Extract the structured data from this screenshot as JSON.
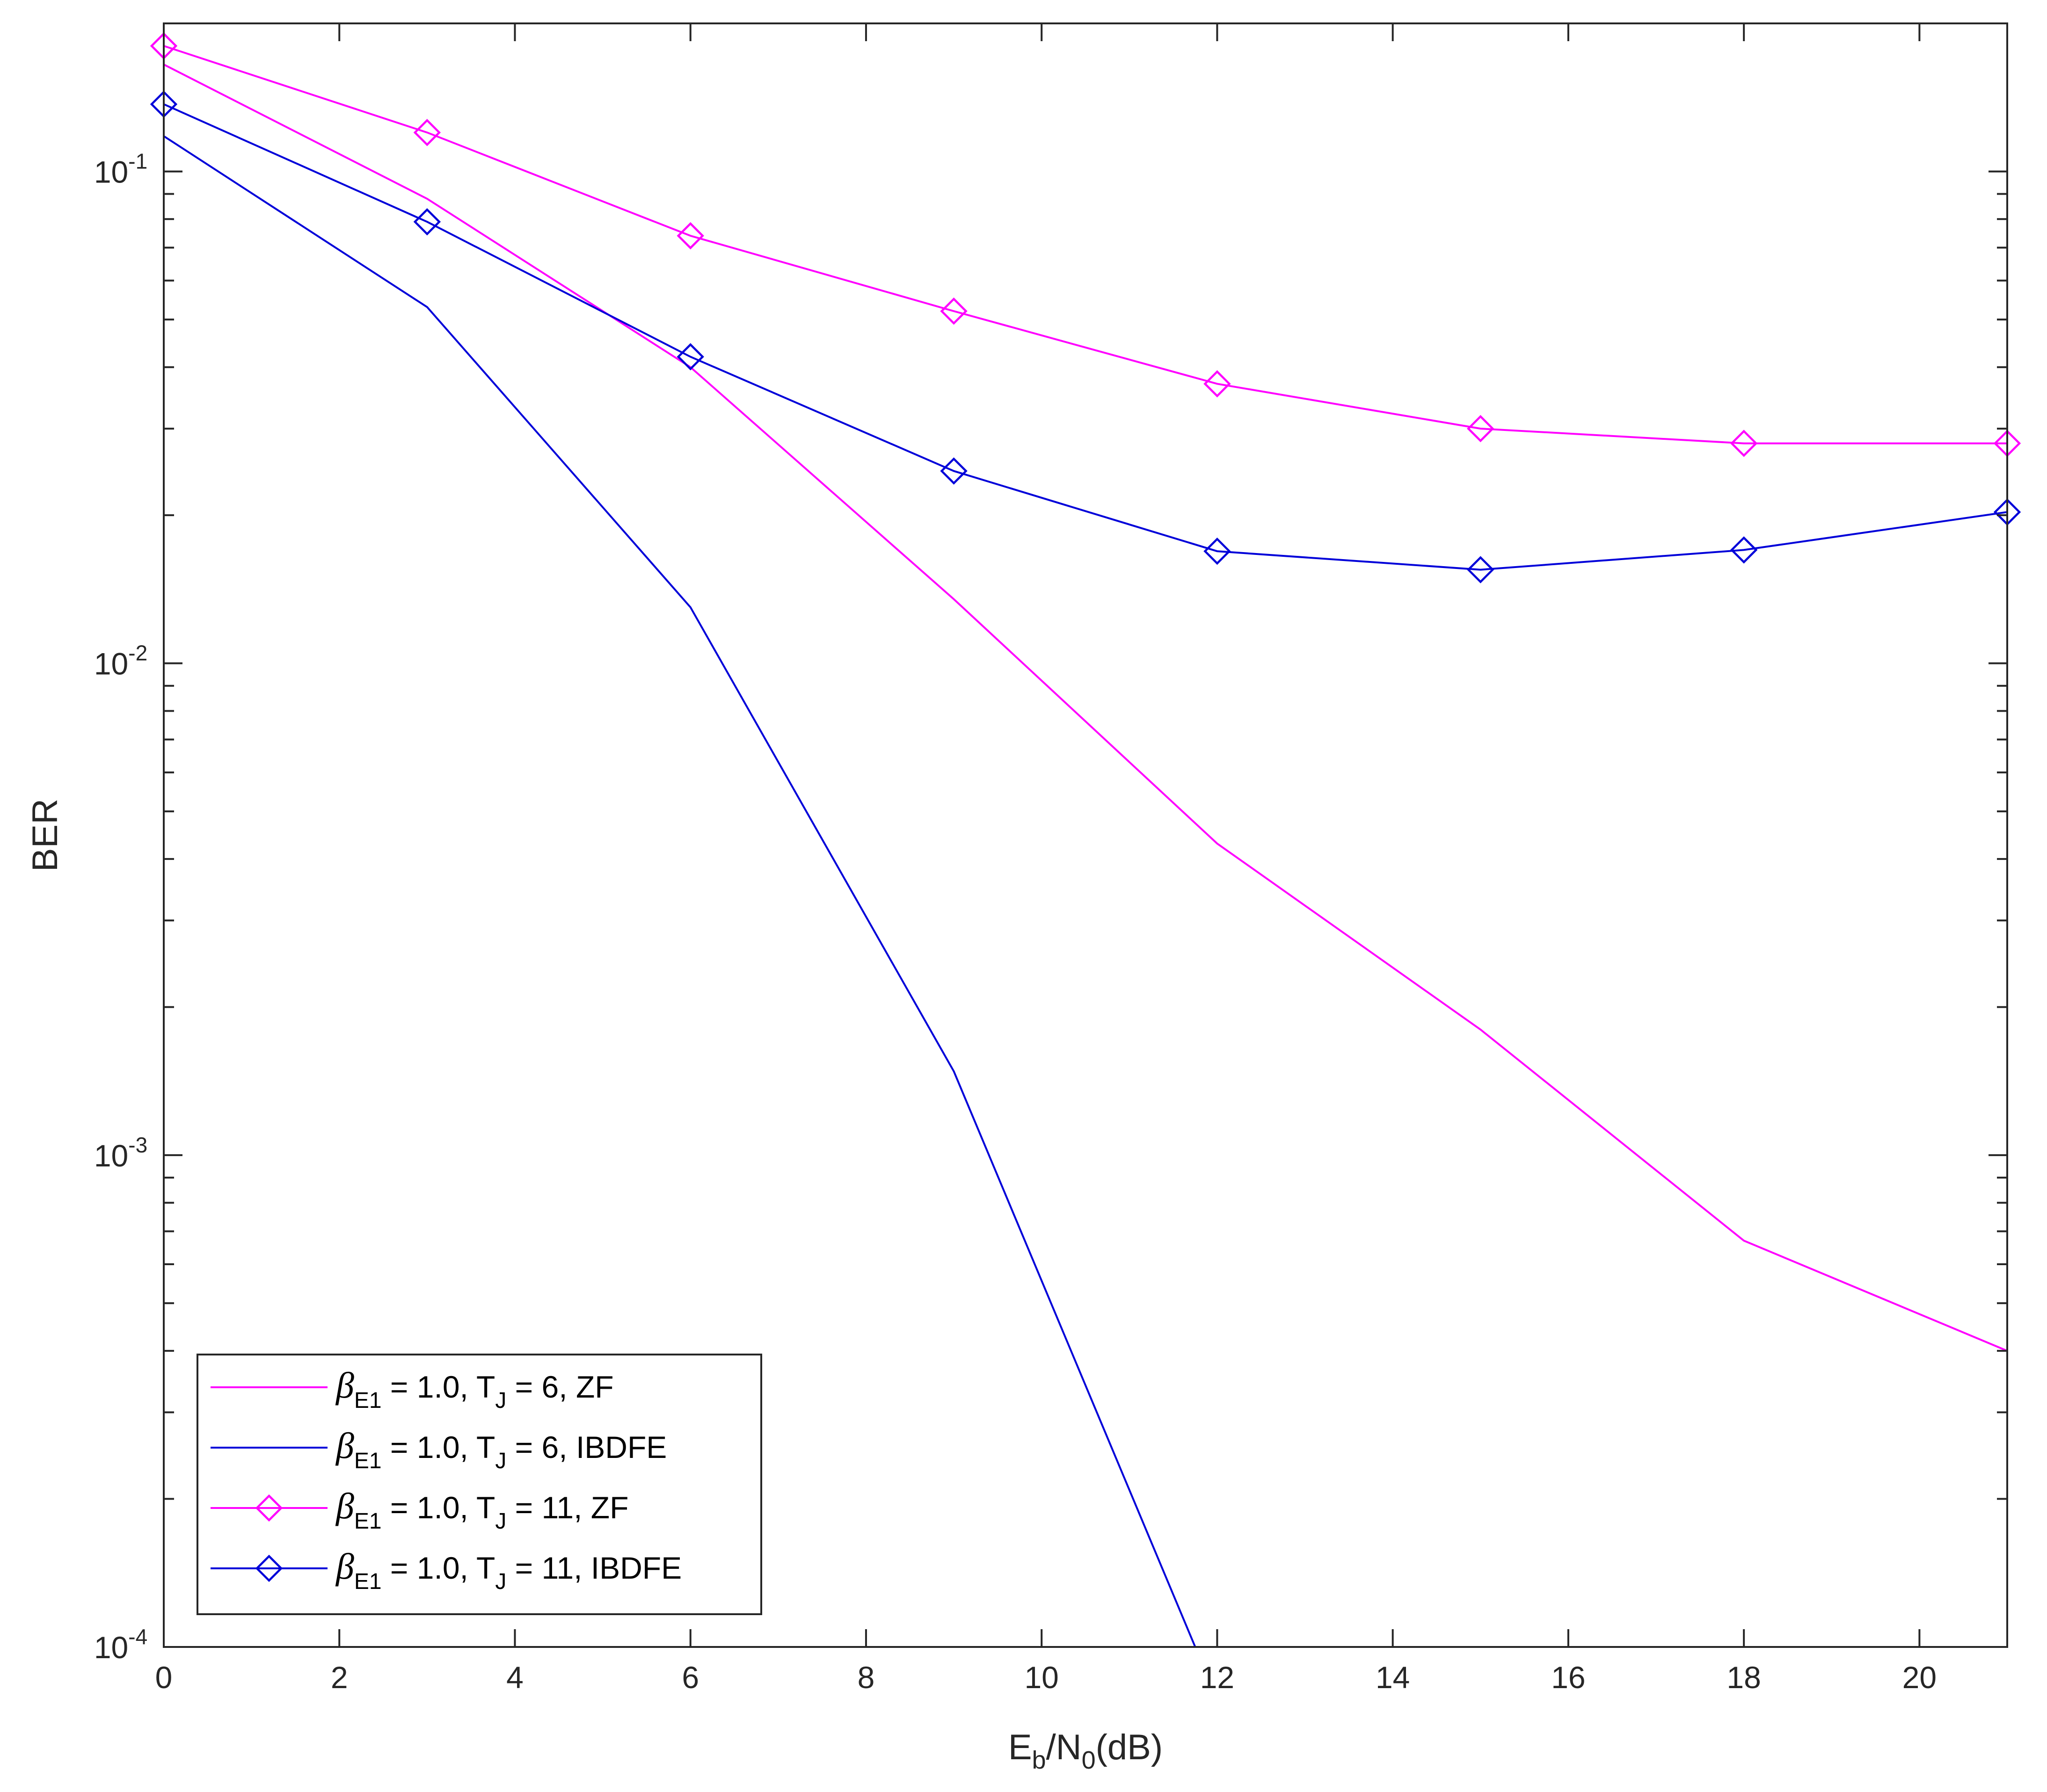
{
  "chart_data": {
    "type": "line",
    "xlabel_parts": [
      "E",
      "b",
      "/N",
      "0",
      "(dB)"
    ],
    "ylabel": "BER",
    "xlim": [
      0,
      21
    ],
    "ylim": [
      0.0001,
      0.2
    ],
    "yscale": "log",
    "x_ticks": [
      "0",
      "2",
      "4",
      "6",
      "8",
      "10",
      "12",
      "14",
      "16",
      "18",
      "20"
    ],
    "y_ticks": [
      {
        "base": "10",
        "exp": "-1"
      },
      {
        "base": "10",
        "exp": "-2"
      },
      {
        "base": "10",
        "exp": "-3"
      },
      {
        "base": "10",
        "exp": "-4"
      }
    ],
    "grid": false,
    "legend_position": "bottom-left",
    "series": [
      {
        "label_parts": {
          "greek": "β",
          "sub": "E1",
          "mid": " = 1.0, T",
          "sub2": "J",
          "tail": " = 6,  ZF"
        },
        "color": "#ff00ff",
        "marker": "none",
        "x": [
          0,
          3,
          6,
          9,
          12,
          15,
          18,
          21
        ],
        "y": [
          0.165,
          0.088,
          0.04,
          0.0135,
          0.0043,
          0.0018,
          0.00067,
          0.0004
        ]
      },
      {
        "label_parts": {
          "greek": "β",
          "sub": "E1",
          "mid": " = 1.0, T",
          "sub2": "J",
          "tail": " = 6,  IBDFE"
        },
        "color": "#0000d9",
        "marker": "none",
        "x": [
          0,
          3,
          6,
          9,
          11.75
        ],
        "y": [
          0.118,
          0.053,
          0.013,
          0.00148,
          0.0001
        ]
      },
      {
        "label_parts": {
          "greek": "β",
          "sub": "E1",
          "mid": " = 1.0, T",
          "sub2": "J",
          "tail": " = 11,  ZF"
        },
        "color": "#ff00ff",
        "marker": "diamond",
        "x": [
          0,
          3,
          6,
          9,
          12,
          15,
          18,
          21
        ],
        "y": [
          0.18,
          0.12,
          0.074,
          0.052,
          0.037,
          0.03,
          0.028,
          0.028
        ]
      },
      {
        "label_parts": {
          "greek": "β",
          "sub": "E1",
          "mid": " = 1.0, T",
          "sub2": "J",
          "tail": " = 11,  IBDFE"
        },
        "color": "#0000d9",
        "marker": "diamond",
        "x": [
          0,
          3,
          6,
          9,
          12,
          15,
          18,
          21
        ],
        "y": [
          0.137,
          0.079,
          0.042,
          0.0246,
          0.0169,
          0.0155,
          0.017,
          0.0203
        ]
      }
    ]
  }
}
